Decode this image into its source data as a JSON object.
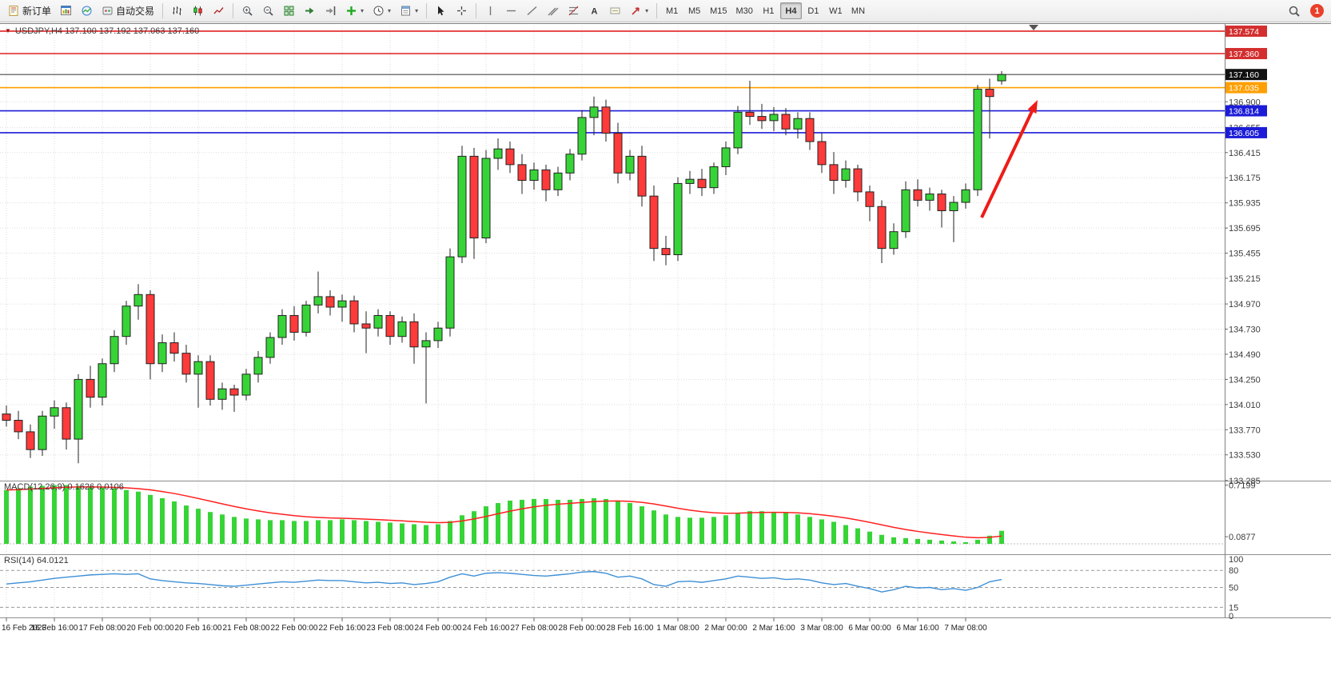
{
  "toolbar": {
    "new_order_label": "新订单",
    "autotrading_label": "自动交易",
    "timeframes": [
      "M1",
      "M5",
      "M15",
      "M30",
      "H1",
      "H4",
      "D1",
      "W1",
      "MN"
    ],
    "active_timeframe": "H4",
    "notification_count": "1",
    "icons": [
      "new-order-icon",
      "chart-window-icon",
      "market-watch-icon",
      "autotrading-icon",
      "bar-chart-icon",
      "candlestick-chart-icon",
      "line-chart-icon",
      "zoom-in-icon",
      "zoom-out-icon",
      "tile-windows-icon",
      "auto-scroll-icon",
      "chart-shift-icon",
      "indicators-icon",
      "periods-icon",
      "templates-icon",
      "cursor-icon",
      "crosshair-icon",
      "vertical-line-icon",
      "horizontal-line-icon",
      "trendline-icon",
      "equidistant-channel-icon",
      "fibonacci-icon",
      "text-icon",
      "text-label-icon",
      "arrows-icon",
      "search-icon",
      "notification-badge"
    ]
  },
  "chart": {
    "symbol_info": "USDJPY,H4 137.100 137.192 137.063 137.160",
    "colors": {
      "bull": "#37d437",
      "bear": "#ff3a3a",
      "outline": "#222222",
      "grid": "#dddddd",
      "axis_text": "#3c3c3c"
    },
    "levels": [
      {
        "label": "137.574",
        "value": 137.574,
        "line_color": "#e02020",
        "tag_bg": "#d32f2f",
        "width": 1.6
      },
      {
        "label": "137.360",
        "value": 137.36,
        "line_color": "#e02020",
        "tag_bg": "#d32f2f",
        "width": 1.6
      },
      {
        "label": "137.160",
        "value": 137.16,
        "line_color": "#4a4a4a",
        "tag_bg": "#111111",
        "width": 1.2
      },
      {
        "label": "137.035",
        "value": 137.035,
        "line_color": "#ff9f00",
        "tag_bg": "#ff9f00",
        "width": 1.6
      },
      {
        "label": "136.814",
        "value": 136.814,
        "line_color": "#1c1cd8",
        "tag_bg": "#1c1cd8",
        "width": 1.6
      },
      {
        "label": "136.605",
        "value": 136.605,
        "line_color": "#1c1cd8",
        "tag_bg": "#1c1cd8",
        "width": 1.6
      }
    ],
    "price_ticks": [
      "136.900",
      "136.655",
      "136.415",
      "136.175",
      "135.935",
      "135.695",
      "135.455",
      "135.215",
      "134.970",
      "134.730",
      "134.490",
      "134.250",
      "134.010",
      "133.770",
      "133.530",
      "133.285"
    ],
    "time_labels": [
      "16 Feb 2023",
      "16 Feb 16:00",
      "17 Feb 08:00",
      "20 Feb 00:00",
      "20 Feb 16:00",
      "21 Feb 08:00",
      "22 Feb 00:00",
      "22 Feb 16:00",
      "23 Feb 08:00",
      "24 Feb 00:00",
      "24 Feb 16:00",
      "27 Feb 08:00",
      "28 Feb 00:00",
      "28 Feb 16:00",
      "1 Mar 08:00",
      "2 Mar 00:00",
      "2 Mar 16:00",
      "3 Mar 08:00",
      "6 Mar 00:00",
      "6 Mar 16:00",
      "7 Mar 08:00"
    ],
    "candles": [
      [
        133.92,
        134.0,
        133.8,
        133.86
      ],
      [
        133.86,
        133.95,
        133.68,
        133.75
      ],
      [
        133.75,
        133.82,
        133.5,
        133.58
      ],
      [
        133.58,
        133.95,
        133.52,
        133.9
      ],
      [
        133.9,
        134.05,
        133.78,
        133.98
      ],
      [
        133.98,
        134.03,
        133.58,
        133.68
      ],
      [
        133.68,
        134.3,
        133.45,
        134.25
      ],
      [
        134.25,
        134.38,
        133.98,
        134.08
      ],
      [
        134.08,
        134.45,
        134.0,
        134.4
      ],
      [
        134.4,
        134.72,
        134.32,
        134.66
      ],
      [
        134.66,
        135.0,
        134.58,
        134.95
      ],
      [
        134.95,
        135.16,
        134.82,
        135.06
      ],
      [
        135.06,
        135.1,
        134.25,
        134.4
      ],
      [
        134.4,
        134.68,
        134.32,
        134.6
      ],
      [
        134.6,
        134.7,
        134.42,
        134.5
      ],
      [
        134.5,
        134.58,
        134.22,
        134.3
      ],
      [
        134.3,
        134.48,
        133.98,
        134.42
      ],
      [
        134.42,
        134.48,
        134.0,
        134.06
      ],
      [
        134.06,
        134.22,
        133.96,
        134.16
      ],
      [
        134.16,
        134.2,
        133.94,
        134.1
      ],
      [
        134.1,
        134.35,
        134.05,
        134.3
      ],
      [
        134.3,
        134.52,
        134.22,
        134.46
      ],
      [
        134.46,
        134.7,
        134.4,
        134.65
      ],
      [
        134.65,
        134.92,
        134.58,
        134.86
      ],
      [
        134.86,
        134.95,
        134.62,
        134.7
      ],
      [
        134.7,
        135.0,
        134.66,
        134.96
      ],
      [
        134.96,
        135.28,
        134.88,
        135.04
      ],
      [
        135.04,
        135.1,
        134.86,
        134.94
      ],
      [
        134.94,
        135.06,
        134.8,
        135.0
      ],
      [
        135.0,
        135.05,
        134.7,
        134.78
      ],
      [
        134.78,
        134.9,
        134.5,
        134.74
      ],
      [
        134.74,
        134.92,
        134.66,
        134.86
      ],
      [
        134.86,
        134.9,
        134.58,
        134.66
      ],
      [
        134.66,
        134.85,
        134.6,
        134.8
      ],
      [
        134.8,
        134.88,
        134.4,
        134.56
      ],
      [
        134.56,
        134.7,
        134.02,
        134.62
      ],
      [
        134.62,
        134.8,
        134.55,
        134.74
      ],
      [
        134.74,
        135.5,
        134.66,
        135.42
      ],
      [
        135.42,
        136.48,
        135.36,
        136.38
      ],
      [
        136.38,
        136.46,
        135.4,
        135.6
      ],
      [
        135.6,
        136.44,
        135.55,
        136.36
      ],
      [
        136.36,
        136.55,
        136.25,
        136.45
      ],
      [
        136.45,
        136.52,
        136.22,
        136.3
      ],
      [
        136.3,
        136.4,
        136.02,
        136.15
      ],
      [
        136.15,
        136.32,
        136.06,
        136.25
      ],
      [
        136.25,
        136.3,
        135.95,
        136.06
      ],
      [
        136.06,
        136.28,
        136.0,
        136.22
      ],
      [
        136.22,
        136.45,
        136.15,
        136.4
      ],
      [
        136.4,
        136.82,
        136.34,
        136.75
      ],
      [
        136.75,
        136.95,
        136.58,
        136.85
      ],
      [
        136.85,
        136.92,
        136.52,
        136.6
      ],
      [
        136.6,
        136.7,
        136.12,
        136.22
      ],
      [
        136.22,
        136.44,
        136.15,
        136.38
      ],
      [
        136.38,
        136.48,
        135.9,
        136.0
      ],
      [
        136.0,
        136.1,
        135.38,
        135.5
      ],
      [
        135.5,
        135.62,
        135.34,
        135.44
      ],
      [
        135.44,
        136.18,
        135.38,
        136.12
      ],
      [
        136.12,
        136.24,
        136.02,
        136.16
      ],
      [
        136.16,
        136.26,
        136.0,
        136.08
      ],
      [
        136.08,
        136.32,
        136.02,
        136.28
      ],
      [
        136.28,
        136.52,
        136.2,
        136.46
      ],
      [
        136.46,
        136.86,
        136.4,
        136.8
      ],
      [
        136.8,
        137.1,
        136.68,
        136.76
      ],
      [
        136.76,
        136.88,
        136.64,
        136.72
      ],
      [
        136.72,
        136.85,
        136.62,
        136.78
      ],
      [
        136.78,
        136.84,
        136.58,
        136.64
      ],
      [
        136.64,
        136.8,
        136.55,
        136.74
      ],
      [
        136.74,
        136.8,
        136.44,
        136.52
      ],
      [
        136.52,
        136.6,
        136.22,
        136.3
      ],
      [
        136.3,
        136.42,
        136.02,
        136.15
      ],
      [
        136.15,
        136.34,
        136.08,
        136.26
      ],
      [
        136.26,
        136.3,
        135.95,
        136.04
      ],
      [
        136.04,
        136.1,
        135.76,
        135.9
      ],
      [
        135.9,
        135.96,
        135.36,
        135.5
      ],
      [
        135.5,
        135.74,
        135.44,
        135.66
      ],
      [
        135.66,
        136.14,
        135.6,
        136.06
      ],
      [
        136.06,
        136.16,
        135.9,
        135.96
      ],
      [
        135.96,
        136.08,
        135.86,
        136.02
      ],
      [
        136.02,
        136.06,
        135.7,
        135.86
      ],
      [
        135.86,
        136.0,
        135.56,
        135.94
      ],
      [
        135.94,
        136.12,
        135.88,
        136.06
      ],
      [
        136.06,
        137.06,
        136.0,
        137.02
      ],
      [
        137.02,
        137.12,
        136.55,
        136.95
      ],
      [
        137.1,
        137.192,
        137.063,
        137.16
      ]
    ],
    "arrow_annotation": {
      "color": "#ee1c16"
    }
  },
  "macd": {
    "label": "MACD(12,26,9) 0.1626 0.0106",
    "histogram_color": "#37d437",
    "signal_color": "#ff2020",
    "axis_labels": [
      {
        "text": "0.7199",
        "value": 0.7199
      },
      {
        "text": "0.0877",
        "value": 0.0877
      }
    ],
    "values": [
      0.66,
      0.68,
      0.7,
      0.71,
      0.72,
      0.72,
      0.71,
      0.7,
      0.69,
      0.68,
      0.66,
      0.64,
      0.6,
      0.56,
      0.52,
      0.47,
      0.43,
      0.39,
      0.36,
      0.33,
      0.31,
      0.3,
      0.29,
      0.29,
      0.28,
      0.28,
      0.29,
      0.29,
      0.3,
      0.29,
      0.28,
      0.27,
      0.26,
      0.25,
      0.24,
      0.23,
      0.24,
      0.28,
      0.35,
      0.4,
      0.46,
      0.5,
      0.53,
      0.54,
      0.55,
      0.55,
      0.54,
      0.54,
      0.55,
      0.56,
      0.55,
      0.53,
      0.5,
      0.46,
      0.41,
      0.36,
      0.33,
      0.32,
      0.32,
      0.33,
      0.35,
      0.38,
      0.4,
      0.4,
      0.39,
      0.38,
      0.36,
      0.33,
      0.3,
      0.27,
      0.23,
      0.19,
      0.15,
      0.11,
      0.08,
      0.07,
      0.06,
      0.05,
      0.04,
      0.03,
      0.02,
      0.05,
      0.1,
      0.16
    ]
  },
  "rsi": {
    "label": "RSI(14) 64.0121",
    "line_color": "#3d8fd6",
    "level_lines": [
      80,
      50,
      15
    ],
    "axis_labels": [
      {
        "text": "100",
        "value": 100
      },
      {
        "text": "80",
        "value": 80
      },
      {
        "text": "50",
        "value": 50
      },
      {
        "text": "15",
        "value": 15
      },
      {
        "text": "0",
        "value": 0
      }
    ],
    "values": [
      56,
      58,
      60,
      63,
      66,
      68,
      70,
      72,
      73,
      74,
      73,
      74,
      65,
      62,
      60,
      58,
      57,
      55,
      53,
      52,
      54,
      56,
      58,
      60,
      59,
      61,
      63,
      62,
      62,
      60,
      58,
      59,
      57,
      58,
      55,
      57,
      60,
      68,
      74,
      70,
      75,
      76,
      75,
      73,
      71,
      70,
      72,
      74,
      77,
      78,
      75,
      68,
      70,
      65,
      55,
      52,
      60,
      61,
      59,
      62,
      65,
      70,
      68,
      66,
      67,
      64,
      65,
      63,
      58,
      55,
      57,
      52,
      48,
      42,
      46,
      52,
      49,
      50,
      46,
      48,
      45,
      50,
      60,
      64
    ]
  }
}
